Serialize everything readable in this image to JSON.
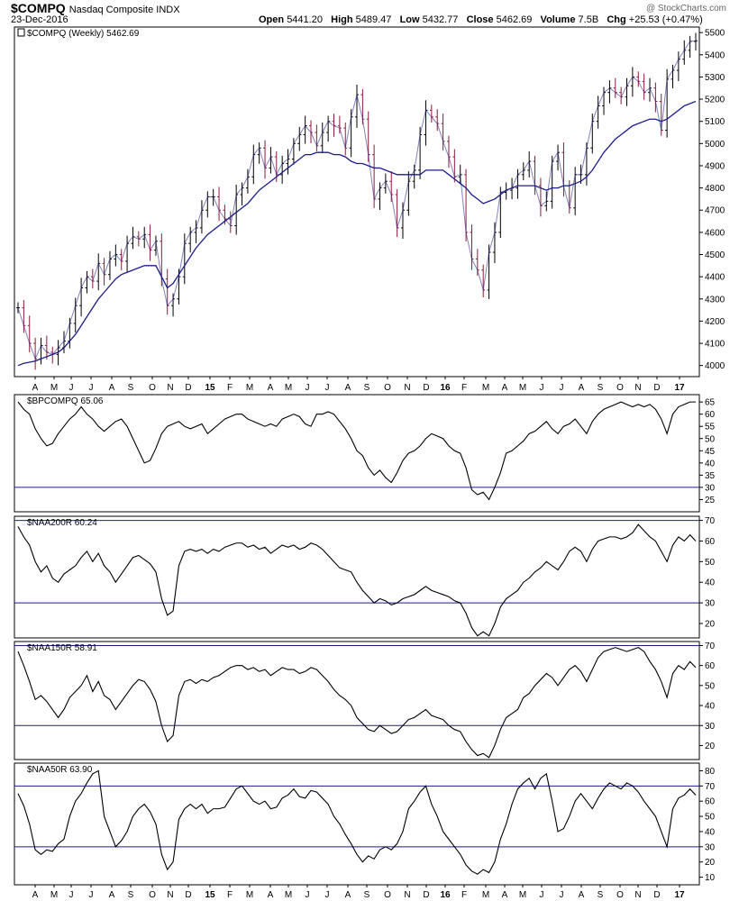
{
  "header": {
    "symbol": "$COMPQ",
    "name": "Nasdaq Composite INDX",
    "date": "23-Dec-2016",
    "brand": "@ StockCharts.com",
    "open_label": "Open",
    "open": "5441.20",
    "high_label": "High",
    "high": "5489.47",
    "low_label": "Low",
    "low": "5432.77",
    "close_label": "Close",
    "close": "5462.69",
    "volume_label": "Volume",
    "volume": "7.5B",
    "chg_label": "Chg",
    "chg": "+25.53 (+0.47%)"
  },
  "colors": {
    "up": "#000000",
    "down": "#8b1a3a",
    "ma": "#1c1c8c",
    "ref": "#1c1c8c",
    "line": "#000000",
    "grid": "#000000"
  },
  "chart_data": [
    {
      "type": "line",
      "id": "price",
      "legend": "$COMPQ (Weekly) 5462.69",
      "ylim": [
        3950,
        5525
      ],
      "yticks": [
        4000,
        4100,
        4200,
        4300,
        4400,
        4500,
        4600,
        4700,
        4800,
        4900,
        5000,
        5100,
        5200,
        5300,
        5400,
        5500
      ],
      "x_labels": [
        "A",
        "M",
        "J",
        "J",
        "A",
        "S",
        "O",
        "N",
        "D",
        "15",
        "F",
        "M",
        "A",
        "M",
        "J",
        "J",
        "A",
        "S",
        "O",
        "N",
        "D",
        "16",
        "F",
        "M",
        "A",
        "M",
        "J",
        "J",
        "A",
        "S",
        "O",
        "N",
        "D",
        "17"
      ],
      "close": [
        4260,
        4180,
        4100,
        4030,
        4090,
        4060,
        4050,
        4080,
        4110,
        4190,
        4270,
        4350,
        4400,
        4380,
        4460,
        4410,
        4480,
        4500,
        4470,
        4550,
        4580,
        4570,
        4590,
        4520,
        4560,
        4390,
        4270,
        4300,
        4400,
        4550,
        4600,
        4620,
        4700,
        4760,
        4760,
        4700,
        4660,
        4630,
        4770,
        4800,
        4850,
        4950,
        4980,
        4890,
        4940,
        4860,
        4910,
        4930,
        5000,
        5040,
        5080,
        5050,
        4990,
        5050,
        5100,
        5080,
        5070,
        4980,
        5120,
        5220,
        5110,
        4950,
        4750,
        4800,
        4830,
        4770,
        4620,
        4700,
        4830,
        4880,
        5040,
        5150,
        5120,
        5090,
        5010,
        4940,
        4850,
        4860,
        4600,
        4480,
        4430,
        4340,
        4510,
        4600,
        4780,
        4790,
        4800,
        4860,
        4880,
        4920,
        4810,
        4720,
        4740,
        4920,
        4960,
        4810,
        4710,
        4860,
        4860,
        4980,
        5100,
        5170,
        5230,
        5250,
        5230,
        5210,
        5260,
        5300,
        5280,
        5230,
        5250,
        5190,
        5060,
        5290,
        5330,
        5380,
        5420,
        5460,
        5463
      ],
      "ma": [
        4000,
        4010,
        4015,
        4020,
        4030,
        4040,
        4050,
        4060,
        4080,
        4110,
        4140,
        4180,
        4220,
        4260,
        4300,
        4330,
        4360,
        4390,
        4410,
        4420,
        4430,
        4440,
        4450,
        4450,
        4450,
        4400,
        4350,
        4370,
        4410,
        4450,
        4490,
        4530,
        4560,
        4590,
        4610,
        4630,
        4650,
        4670,
        4690,
        4710,
        4730,
        4760,
        4790,
        4810,
        4830,
        4850,
        4870,
        4890,
        4910,
        4930,
        4950,
        4950,
        4960,
        4960,
        4960,
        4950,
        4950,
        4940,
        4920,
        4910,
        4910,
        4900,
        4890,
        4890,
        4880,
        4870,
        4860,
        4860,
        4860,
        4860,
        4860,
        4880,
        4880,
        4880,
        4880,
        4860,
        4840,
        4820,
        4800,
        4770,
        4750,
        4730,
        4740,
        4750,
        4770,
        4790,
        4800,
        4810,
        4810,
        4810,
        4810,
        4800,
        4790,
        4800,
        4800,
        4810,
        4810,
        4820,
        4830,
        4850,
        4880,
        4920,
        4960,
        4990,
        5020,
        5040,
        5060,
        5080,
        5090,
        5100,
        5110,
        5110,
        5100,
        5110,
        5130,
        5150,
        5170,
        5180,
        5190
      ]
    },
    {
      "type": "line",
      "id": "bp",
      "legend": "$BPCOMPQ 65.06",
      "ylim": [
        20,
        68
      ],
      "yticks": [
        25,
        30,
        35,
        40,
        45,
        50,
        55,
        60,
        65
      ],
      "ref_lines": [
        30
      ],
      "values": [
        65,
        62,
        60,
        54,
        50,
        47,
        48,
        52,
        55,
        58,
        60,
        63,
        60,
        58,
        55,
        53,
        55,
        57,
        58,
        55,
        50,
        45,
        40,
        41,
        46,
        52,
        55,
        56,
        57,
        55,
        54,
        55,
        56,
        52,
        54,
        56,
        58,
        59,
        60,
        60,
        58,
        57,
        56,
        55,
        56,
        55,
        58,
        59,
        60,
        59,
        56,
        55,
        60,
        60,
        61,
        60,
        57,
        54,
        50,
        45,
        43,
        38,
        35,
        37,
        34,
        32,
        36,
        41,
        44,
        45,
        47,
        50,
        52,
        51,
        50,
        47,
        45,
        44,
        38,
        29,
        27,
        28,
        25,
        30,
        36,
        44,
        45,
        47,
        49,
        52,
        53,
        55,
        57,
        54,
        52,
        55,
        56,
        58,
        55,
        52,
        57,
        60,
        62,
        63,
        64,
        65,
        64,
        63,
        64,
        63,
        64,
        62,
        58,
        52,
        60,
        63,
        64,
        65,
        65
      ]
    },
    {
      "type": "line",
      "id": "a200",
      "legend": "$NAA200R 60.24",
      "ylim": [
        13,
        72
      ],
      "yticks": [
        20,
        30,
        40,
        50,
        60,
        70
      ],
      "ref_lines": [
        30,
        70
      ],
      "values": [
        67,
        62,
        58,
        50,
        45,
        48,
        42,
        40,
        44,
        46,
        48,
        52,
        55,
        50,
        54,
        48,
        45,
        40,
        44,
        48,
        52,
        53,
        51,
        49,
        45,
        32,
        24,
        26,
        48,
        55,
        56,
        55,
        56,
        54,
        56,
        55,
        57,
        58,
        59,
        59,
        57,
        58,
        56,
        57,
        54,
        56,
        58,
        57,
        58,
        56,
        57,
        59,
        58,
        56,
        53,
        50,
        47,
        46,
        45,
        40,
        36,
        33,
        30,
        32,
        31,
        29,
        30,
        32,
        33,
        34,
        36,
        38,
        36,
        35,
        34,
        33,
        31,
        30,
        25,
        18,
        14,
        16,
        14,
        20,
        28,
        32,
        34,
        36,
        40,
        42,
        45,
        47,
        50,
        48,
        46,
        50,
        55,
        57,
        55,
        50,
        56,
        60,
        61,
        62,
        62,
        61,
        62,
        64,
        68,
        65,
        62,
        60,
        55,
        50,
        58,
        62,
        60,
        63,
        60
      ]
    },
    {
      "type": "line",
      "id": "a150",
      "legend": "$NAA150R 58.91",
      "ylim": [
        13,
        72
      ],
      "yticks": [
        20,
        30,
        40,
        50,
        60,
        70
      ],
      "ref_lines": [
        30,
        70
      ],
      "values": [
        67,
        60,
        52,
        43,
        45,
        42,
        38,
        34,
        38,
        44,
        47,
        50,
        55,
        47,
        52,
        45,
        43,
        38,
        42,
        46,
        50,
        53,
        52,
        48,
        42,
        30,
        22,
        25,
        45,
        52,
        53,
        51,
        53,
        52,
        54,
        55,
        57,
        59,
        60,
        60,
        58,
        59,
        57,
        58,
        55,
        57,
        59,
        58,
        58,
        56,
        57,
        59,
        58,
        55,
        52,
        48,
        45,
        43,
        40,
        34,
        31,
        28,
        27,
        30,
        28,
        26,
        27,
        30,
        33,
        34,
        36,
        38,
        35,
        34,
        33,
        30,
        28,
        27,
        22,
        18,
        15,
        16,
        14,
        20,
        28,
        34,
        36,
        38,
        44,
        46,
        50,
        53,
        56,
        54,
        50,
        54,
        58,
        60,
        57,
        52,
        58,
        64,
        67,
        68,
        69,
        68,
        67,
        68,
        69,
        67,
        62,
        58,
        52,
        44,
        56,
        60,
        58,
        62,
        59
      ]
    },
    {
      "type": "line",
      "id": "a50",
      "legend": "$NAA50R 63.90",
      "ylim": [
        5,
        85
      ],
      "yticks": [
        10,
        20,
        30,
        40,
        50,
        60,
        70,
        80
      ],
      "ref_lines": [
        30,
        70
      ],
      "values": [
        65,
        57,
        45,
        28,
        25,
        28,
        27,
        32,
        35,
        50,
        60,
        65,
        72,
        78,
        80,
        50,
        40,
        30,
        34,
        40,
        50,
        55,
        58,
        53,
        45,
        25,
        15,
        20,
        48,
        55,
        58,
        55,
        58,
        52,
        55,
        55,
        56,
        62,
        68,
        70,
        65,
        60,
        58,
        60,
        55,
        56,
        62,
        64,
        68,
        63,
        62,
        67,
        66,
        62,
        58,
        50,
        45,
        38,
        32,
        25,
        20,
        24,
        22,
        28,
        30,
        28,
        32,
        40,
        55,
        60,
        66,
        70,
        58,
        50,
        40,
        35,
        30,
        25,
        18,
        14,
        12,
        15,
        13,
        20,
        35,
        45,
        58,
        68,
        72,
        75,
        68,
        75,
        78,
        60,
        40,
        42,
        50,
        60,
        65,
        60,
        55,
        62,
        68,
        72,
        70,
        68,
        72,
        70,
        66,
        60,
        55,
        50,
        40,
        30,
        55,
        62,
        64,
        68,
        64
      ]
    }
  ]
}
